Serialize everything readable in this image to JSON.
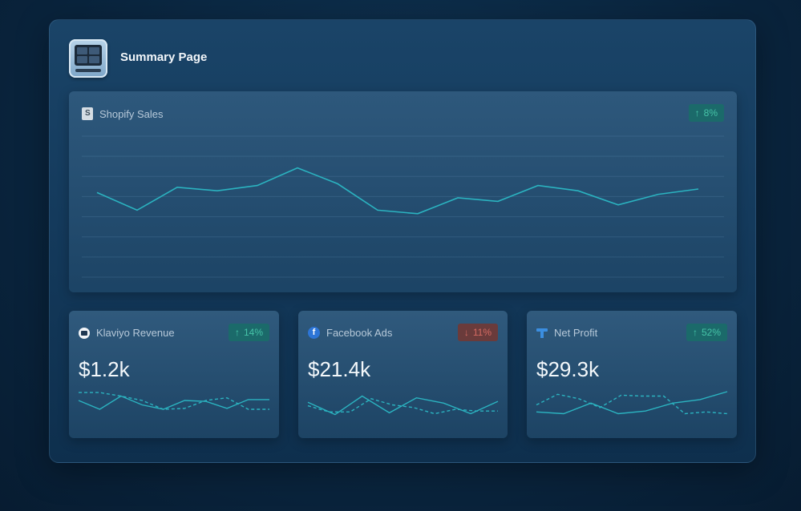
{
  "page": {
    "title": "Summary Page"
  },
  "icons": {
    "app": "dashboard-monitor-icon",
    "shopify": "shopify-bag-icon",
    "klaviyo": "klaviyo-icon",
    "facebook": "facebook-icon",
    "net_profit": "funnel-icon"
  },
  "colors": {
    "line": "#2bb3c0",
    "up": "#46c4a8",
    "down": "#d46a62"
  },
  "shopify": {
    "title": "Shopify Sales",
    "change": "8%",
    "direction": "up",
    "series": [
      48,
      38,
      51,
      49,
      52,
      62,
      53,
      38,
      36,
      45,
      43,
      52,
      49,
      41,
      47,
      50
    ]
  },
  "metrics": [
    {
      "title": "Klaviyo Revenue",
      "value": "$1.2k",
      "change": "14%",
      "direction": "up",
      "solid": [
        40,
        30,
        45,
        35,
        30,
        40,
        39,
        31,
        41,
        41
      ],
      "dashed": [
        49,
        49,
        45,
        40,
        30,
        31,
        40,
        43,
        30,
        30
      ]
    },
    {
      "title": "Facebook Ads",
      "value": "$21.4k",
      "change": "11%",
      "direction": "down",
      "solid": [
        38,
        24,
        45,
        26,
        43,
        37,
        25,
        39
      ],
      "dashed": [
        34,
        27,
        27,
        42,
        35,
        32,
        25,
        30,
        28,
        28
      ]
    },
    {
      "title": "Net Profit",
      "value": "$29.3k",
      "change": "52%",
      "direction": "up",
      "solid": [
        27,
        25,
        37,
        25,
        28,
        37,
        41,
        50
      ],
      "dashed": [
        35,
        47,
        42,
        32,
        46,
        45,
        45,
        25,
        27,
        25
      ]
    }
  ]
}
